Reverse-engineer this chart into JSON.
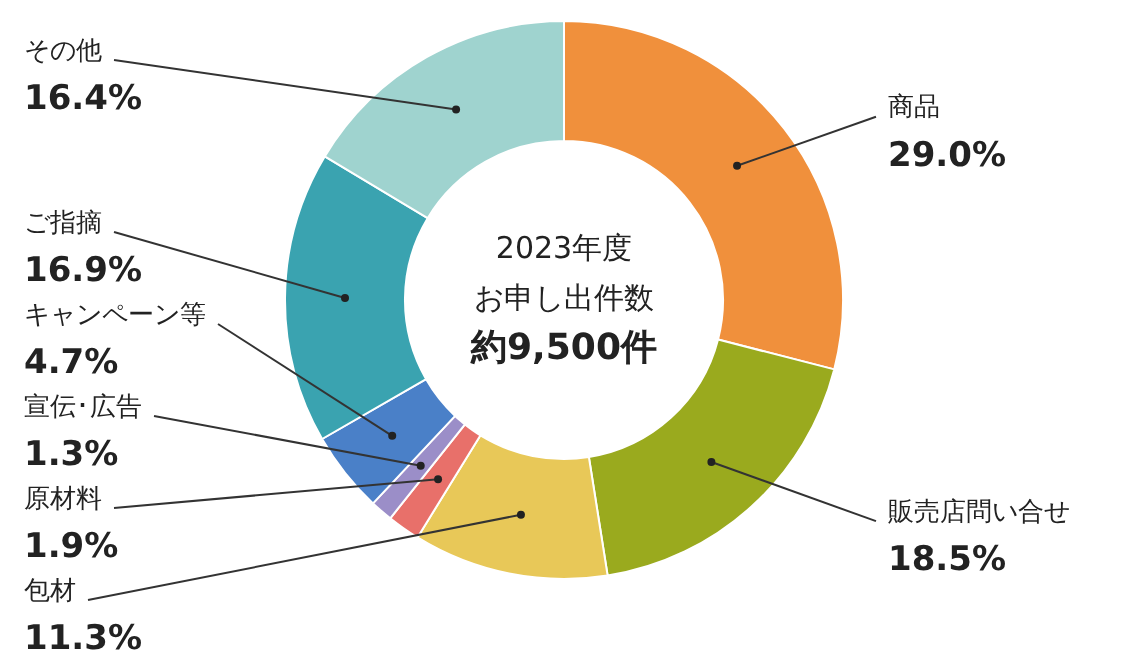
{
  "chart_data": {
    "type": "donut",
    "categories": [
      "商品",
      "販売店問い合せ",
      "包材",
      "原材料",
      "宣伝･広告",
      "キャンペーン等",
      "ご指摘",
      "その他"
    ],
    "values": [
      29.0,
      18.5,
      11.3,
      1.9,
      1.3,
      4.7,
      16.9,
      16.4
    ],
    "colors": [
      "#f0903c",
      "#9aaa1e",
      "#e8c858",
      "#e8706a",
      "#9b8ec8",
      "#4a80c8",
      "#3aa3b0",
      "#9fd3cf"
    ],
    "value_labels": [
      "29.0%",
      "18.5%",
      "11.3%",
      "1.9%",
      "1.3%",
      "4.7%",
      "16.9%",
      "16.4%"
    ],
    "annotations": [
      "2023年度",
      "お申し出件数",
      "約9,500件"
    ],
    "legend": false
  }
}
